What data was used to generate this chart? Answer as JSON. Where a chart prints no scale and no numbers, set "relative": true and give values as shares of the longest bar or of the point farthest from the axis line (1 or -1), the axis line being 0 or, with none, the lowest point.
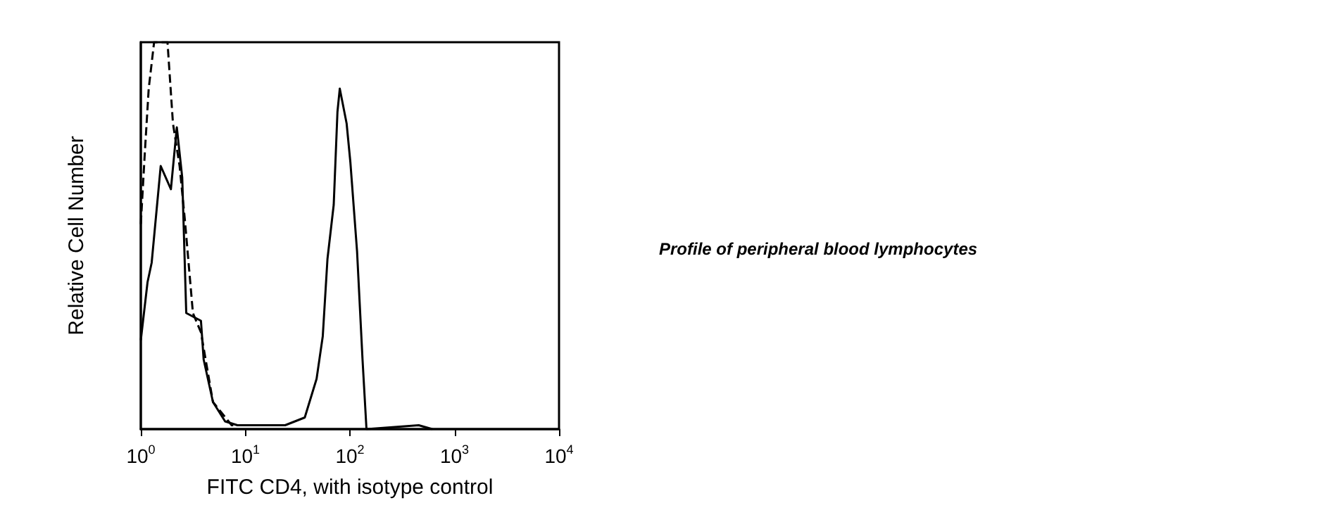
{
  "chart_data": {
    "type": "line",
    "relative": true,
    "xlabel": "FITC CD4, with isotype control",
    "ylabel": "Relative Cell Number",
    "log": "x",
    "grid": false,
    "marker": "none",
    "xlim": [
      1,
      10000
    ],
    "xticks": [
      {
        "value": 1,
        "label": "10$^{0}$"
      },
      {
        "value": 10,
        "label": "10$^{1}$"
      },
      {
        "value": 100,
        "label": "10$^{2}$"
      },
      {
        "value": 1000,
        "label": "10$^{3}$"
      },
      {
        "value": 10000,
        "label": "10$^{4}$"
      }
    ],
    "annotations": [
      "Profile of peripheral blood lymphocytes"
    ],
    "series": [
      {
        "color": "#000000",
        "line_style": "solid",
        "x": [
          1.0,
          1.16,
          1.27,
          1.55,
          1.94,
          2.21,
          2.49,
          2.72,
          3.76,
          3.99,
          4.9,
          6.4,
          8.4,
          24,
          37,
          48,
          55,
          61,
          70,
          76,
          80,
          93,
          101,
          117,
          132,
          144,
          455,
          614
        ],
        "values": [
          0.23,
          0.38,
          0.43,
          0.68,
          0.62,
          0.78,
          0.65,
          0.3,
          0.28,
          0.18,
          0.07,
          0.02,
          0.01,
          0.01,
          0.03,
          0.13,
          0.24,
          0.44,
          0.58,
          0.82,
          0.88,
          0.79,
          0.69,
          0.46,
          0.18,
          0.0,
          0.01,
          0.0
        ]
      },
      {
        "color": "#000000",
        "line_style": "dashed",
        "x": [
          1.0,
          1.09,
          1.19,
          1.34,
          1.8,
          2.03,
          2.35,
          2.64,
          3.15,
          3.76,
          4.9,
          7.4,
          24
        ],
        "values": [
          0.53,
          0.71,
          0.88,
          1.0,
          1.0,
          0.79,
          0.68,
          0.54,
          0.3,
          0.25,
          0.07,
          0.01,
          0.01
        ]
      }
    ]
  }
}
